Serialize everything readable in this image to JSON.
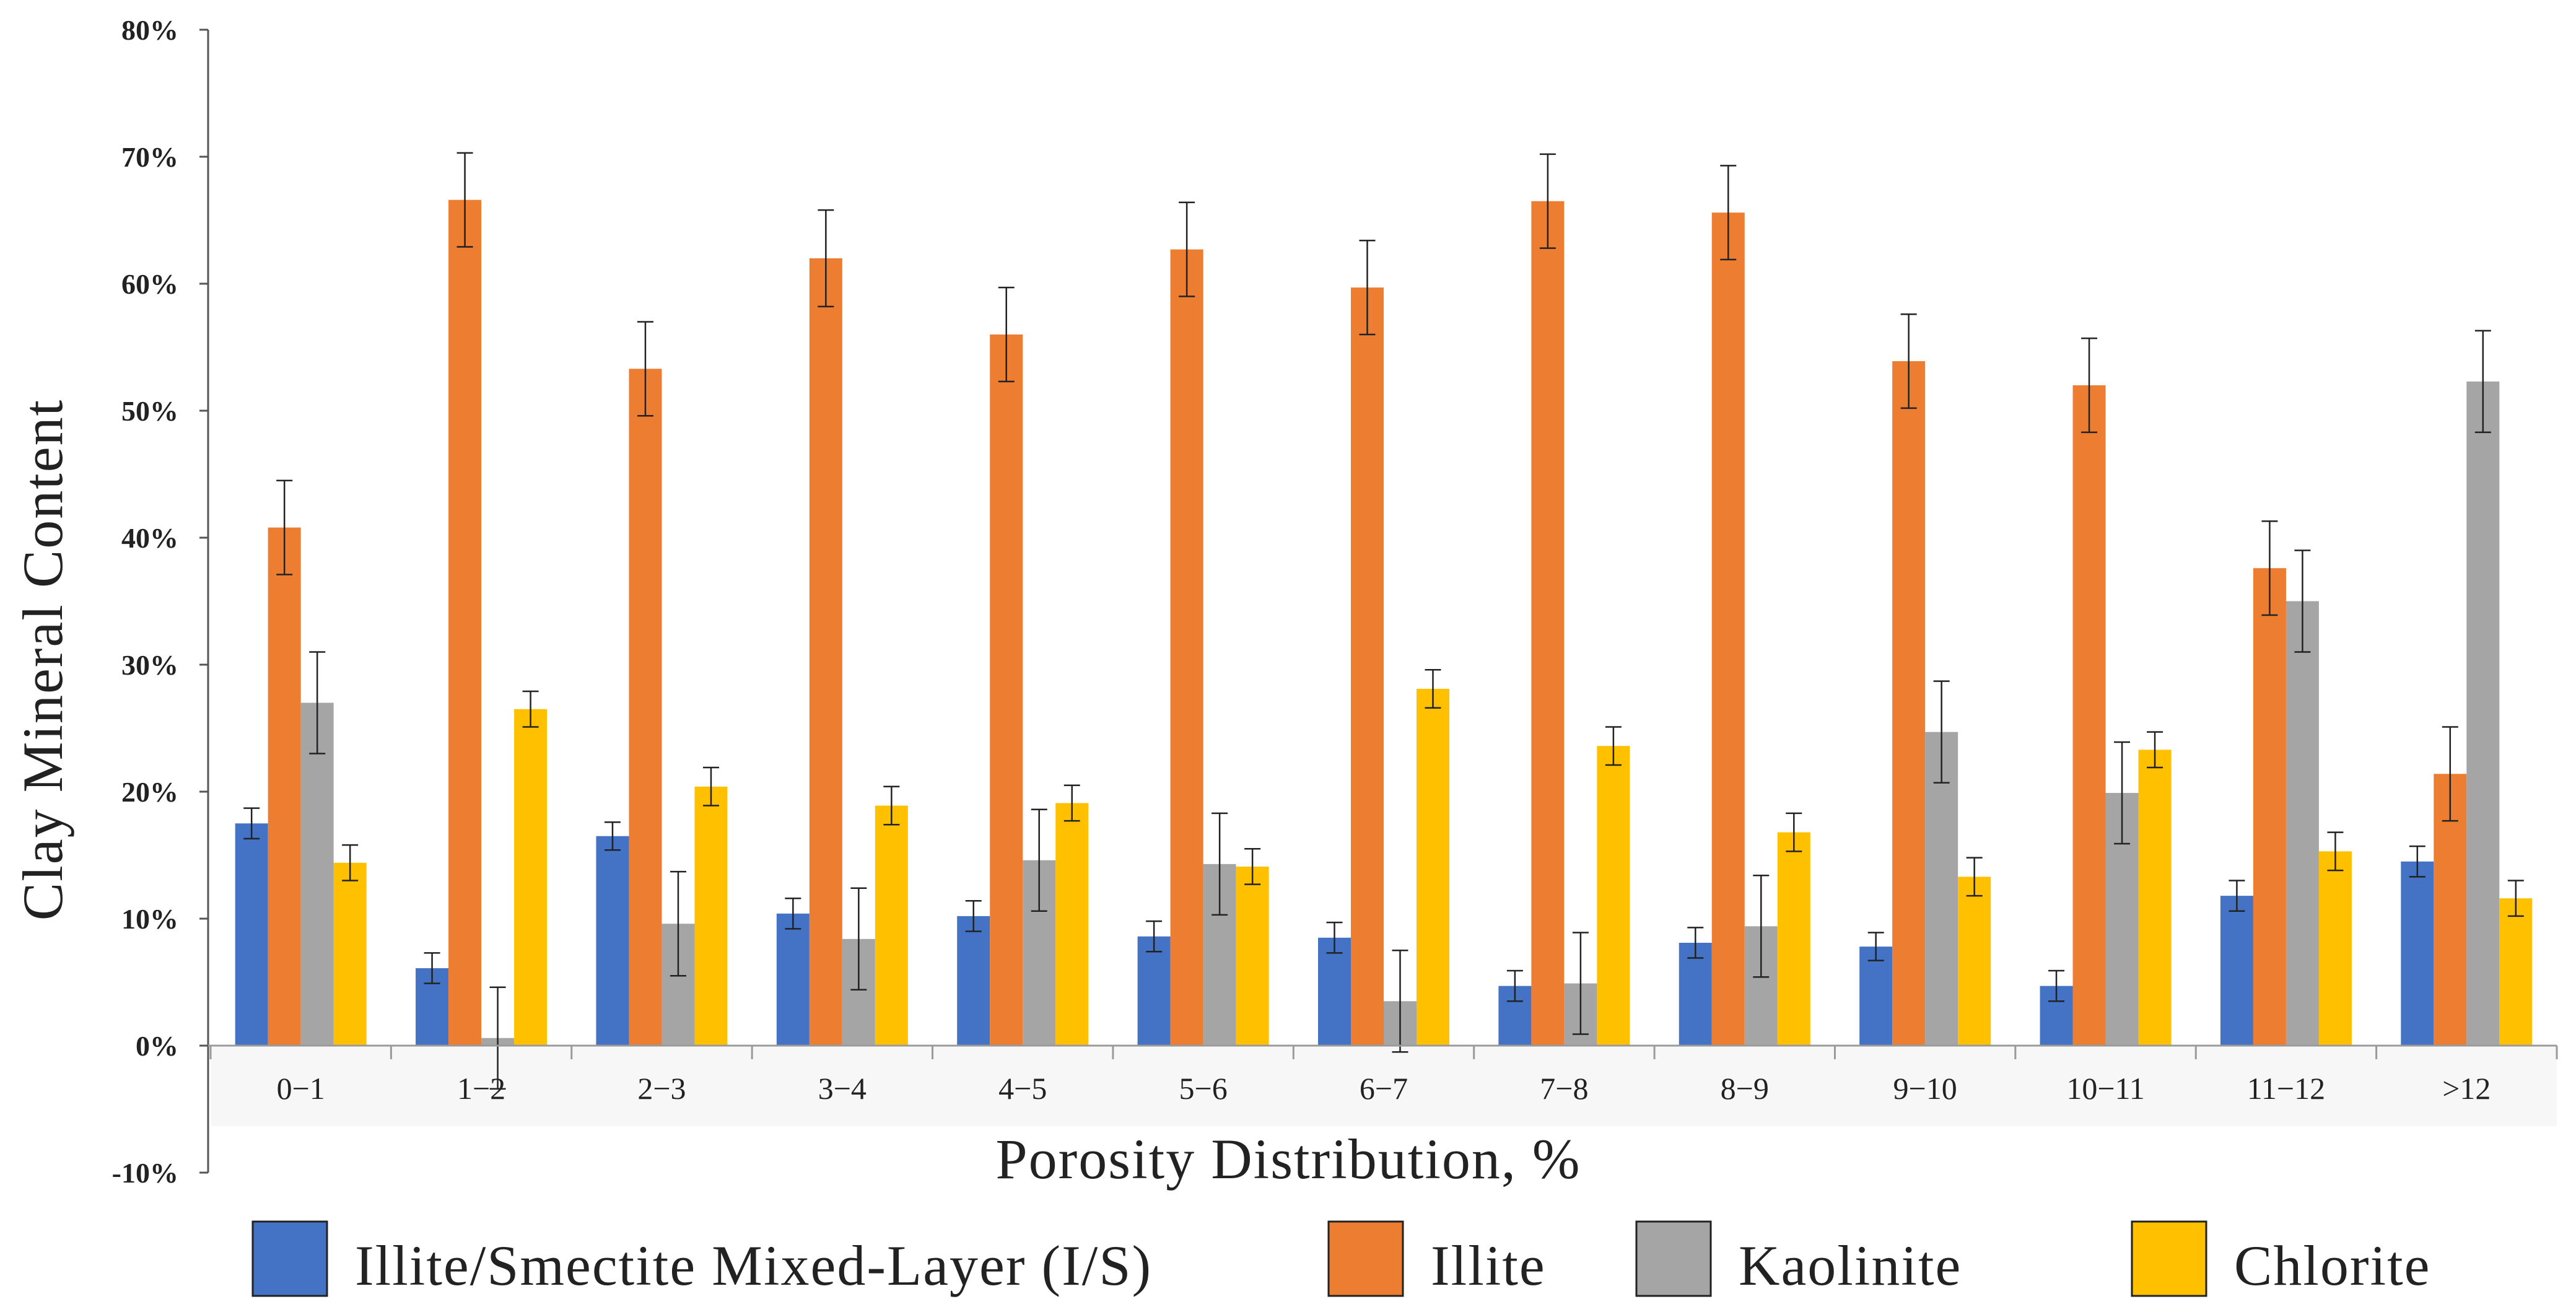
{
  "chart_data": {
    "type": "bar",
    "title": "",
    "xlabel": "Porosity Distribution, %",
    "ylabel": "Clay Mineral Content",
    "ylim": [
      -10,
      80
    ],
    "yticks": [
      "-10%",
      "0%",
      "10%",
      "20%",
      "30%",
      "40%",
      "50%",
      "60%",
      "70%",
      "80%"
    ],
    "grid": false,
    "legend_position": "bottom",
    "categories": [
      "0−1",
      "1−2",
      "2−3",
      "3−4",
      "4−5",
      "5−6",
      "6−7",
      "7−8",
      "8−9",
      "9−10",
      "10−11",
      "11−12",
      ">12"
    ],
    "series": [
      {
        "name": "Illite/Smectite Mixed-Layer (I/S)",
        "color": "#4472c4",
        "values": [
          17.5,
          6.1,
          16.5,
          10.4,
          10.2,
          8.6,
          8.5,
          4.7,
          8.1,
          7.8,
          4.7,
          11.8,
          14.5
        ],
        "errors": [
          1.2,
          1.2,
          1.1,
          1.2,
          1.2,
          1.2,
          1.2,
          1.2,
          1.2,
          1.1,
          1.2,
          1.2,
          1.2
        ]
      },
      {
        "name": "Illite",
        "color": "#ed7d31",
        "values": [
          40.8,
          66.6,
          53.3,
          62.0,
          56.0,
          62.7,
          59.7,
          66.5,
          65.6,
          53.9,
          52.0,
          37.6,
          21.4
        ],
        "errors": [
          3.7,
          3.7,
          3.7,
          3.8,
          3.7,
          3.7,
          3.7,
          3.7,
          3.7,
          3.7,
          3.7,
          3.7,
          3.7
        ]
      },
      {
        "name": "Kaolinite",
        "color": "#a5a5a5",
        "values": [
          27.0,
          0.6,
          9.6,
          8.4,
          14.6,
          14.3,
          3.5,
          4.9,
          9.4,
          24.7,
          19.9,
          35.0,
          52.3
        ],
        "errors": [
          4.0,
          4.0,
          4.1,
          4.0,
          4.0,
          4.0,
          4.0,
          4.0,
          4.0,
          4.0,
          4.0,
          4.0,
          4.0
        ]
      },
      {
        "name": "Chlorite",
        "color": "#ffc000",
        "values": [
          14.4,
          26.5,
          20.4,
          18.9,
          19.1,
          14.1,
          28.1,
          23.6,
          16.8,
          13.3,
          23.3,
          15.3,
          11.6
        ],
        "errors": [
          1.4,
          1.4,
          1.5,
          1.5,
          1.4,
          1.4,
          1.5,
          1.5,
          1.5,
          1.5,
          1.4,
          1.5,
          1.4
        ]
      }
    ]
  }
}
